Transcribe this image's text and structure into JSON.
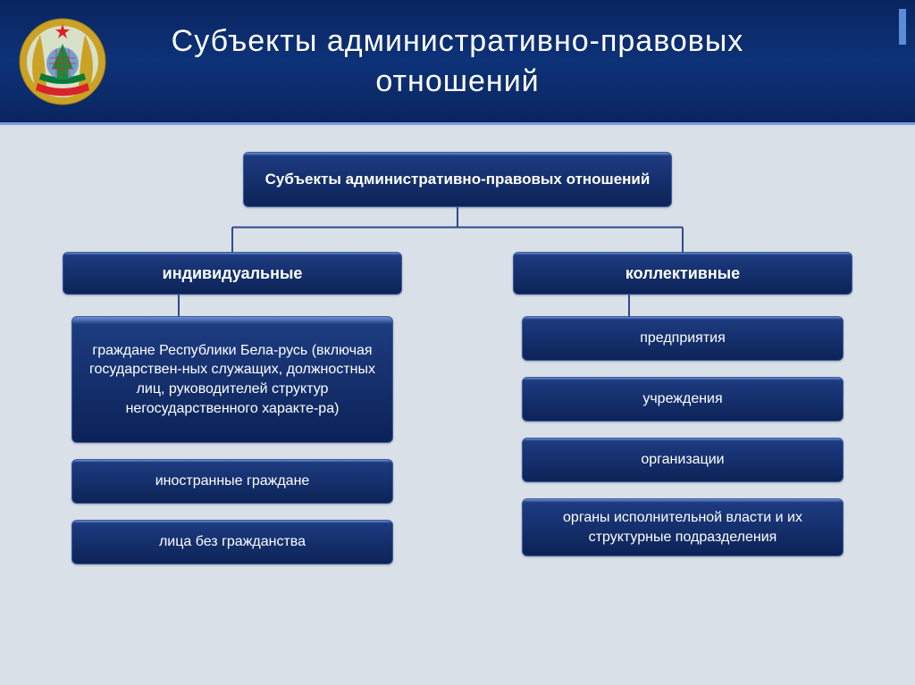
{
  "header": {
    "title": "Субъекты административно-правовых отношений"
  },
  "chart": {
    "type": "tree",
    "root_label": "Субъекты административно-правовых отношений",
    "branches": [
      {
        "label": "индивидуальные",
        "leaves": [
          "граждане Республики Бела-русь (включая государствен-ных служащих, должностных лиц, руководителей структур негосударственного характе-ра)",
          "иностранные граждане",
          "лица без гражданства"
        ]
      },
      {
        "label": "коллективные",
        "leaves": [
          "предприятия",
          "учреждения",
          "организации",
          "органы исполнительной власти и их структурные подразделения"
        ]
      }
    ],
    "colors": {
      "box_gradient_top": "#1d3b80",
      "box_gradient_bottom": "#0c2357",
      "box_border": "#3b5aa3",
      "box_border_light": "#6d8fd2",
      "connector": "#2b4a8f",
      "header_gradient_top": "#0a2560",
      "header_gradient_mid": "#0d3278",
      "background": "#d9e0e7",
      "text": "#ffffff"
    },
    "fonts": {
      "title_size_pt": 26,
      "root_size_pt": 13,
      "branch_size_pt": 14,
      "leaf_size_pt": 12
    }
  },
  "emblem": {
    "outer_color": "#c9a227",
    "ribbon_red": "#d8232a",
    "ribbon_green": "#0a7a3b",
    "globe_color": "#5b8dd6",
    "star_color": "#d8232a",
    "center_green": "#188c3e"
  }
}
